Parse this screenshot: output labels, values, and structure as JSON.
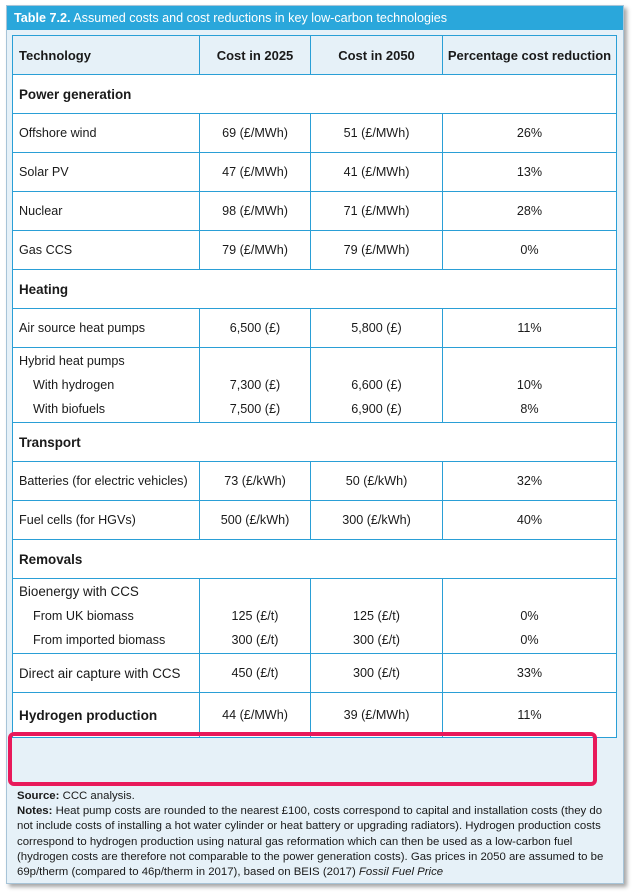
{
  "table": {
    "title_label": "Table 7.2.",
    "title_text": "Assumed costs and cost reductions in key low-carbon technologies",
    "headers": [
      "Technology",
      "Cost in 2025",
      "Cost in 2050",
      "Percentage cost reduction"
    ],
    "sections": {
      "power": "Power generation",
      "heating": "Heating",
      "transport": "Transport",
      "removals": "Removals"
    },
    "rows": {
      "offshore_wind": [
        "Offshore wind",
        "69 (£/MWh)",
        "51 (£/MWh)",
        "26%"
      ],
      "solar_pv": [
        "Solar PV",
        "47 (£/MWh)",
        "41 (£/MWh)",
        "13%"
      ],
      "nuclear": [
        "Nuclear",
        "98 (£/MWh)",
        "71 (£/MWh)",
        "28%"
      ],
      "gas_ccs": [
        "Gas CCS",
        "79 (£/MWh)",
        "79 (£/MWh)",
        "0%"
      ],
      "ashp": [
        "Air source heat pumps",
        "6,500 (£)",
        "5,800 (£)",
        "11%"
      ],
      "hybrid": {
        "label": "Hybrid heat pumps",
        "sub1": [
          "With hydrogen",
          "7,300 (£)",
          "6,600 (£)",
          "10%"
        ],
        "sub2": [
          "With biofuels",
          "7,500 (£)",
          "6,900 (£)",
          "8%"
        ]
      },
      "batteries": [
        "Batteries (for electric vehicles)",
        "73 (£/kWh)",
        "50 (£/kWh)",
        "32%"
      ],
      "fuel_cells": [
        "Fuel cells (for HGVs)",
        "500 (£/kWh)",
        "300 (£/kWh)",
        "40%"
      ],
      "beccs": {
        "label": "Bioenergy with CCS",
        "sub1": [
          "From UK biomass",
          "125 (£/t)",
          "125 (£/t)",
          "0%"
        ],
        "sub2": [
          "From imported biomass",
          "300 (£/t)",
          "300 (£/t)",
          "0%"
        ]
      },
      "dac": [
        "Direct air capture with CCS",
        "450 (£/t)",
        "300 (£/t)",
        "33%"
      ],
      "hydrogen": [
        "Hydrogen production",
        "44 (£/MWh)",
        "39 (£/MWh)",
        "11%"
      ]
    }
  },
  "notes": {
    "source_label": "Source:",
    "source_text": "CCC analysis.",
    "notes_label": "Notes:",
    "notes_text": "Heat pump costs are rounded to the nearest £100, costs correspond to capital and installation costs (they do not include costs of installing a hot water cylinder or heat battery or upgrading radiators). Hydrogen production costs correspond to hydrogen production using natural gas reformation which can then be used as a low-carbon fuel (hydrogen costs are therefore not comparable to the power generation costs). Gas prices in 2050 are assumed to be 69p/therm (compared to 46p/therm in 2017), based on BEIS (2017)",
    "notes_italic": "Fossil Fuel Price"
  },
  "colors": {
    "title_bar": "#2aa7db",
    "grid_line": "#2a9fd6",
    "panel_bg": "#e6f1f8",
    "highlight": "#e8195a"
  }
}
